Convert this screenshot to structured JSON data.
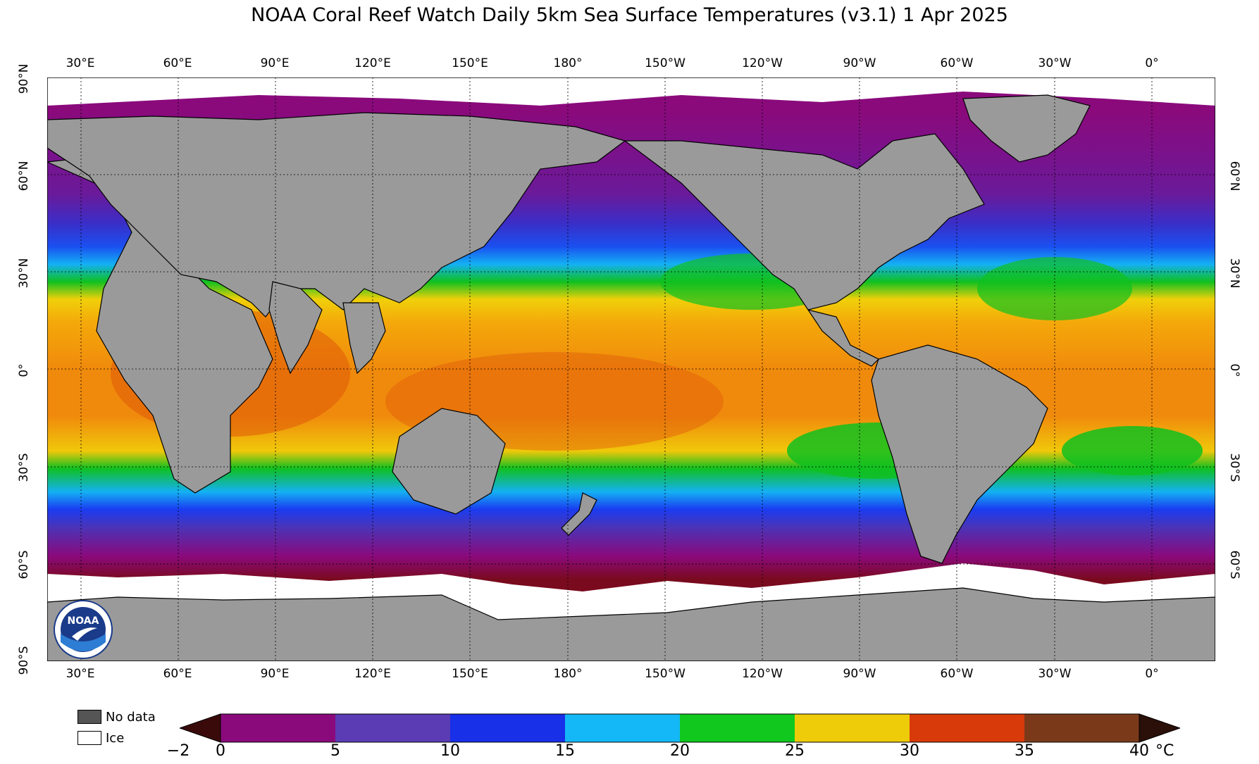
{
  "title": "NOAA Coral Reef Watch Daily 5km Sea Surface Temperatures  (v3.1)    1 Apr 2025",
  "lon_labels": [
    "30°E",
    "60°E",
    "90°E",
    "120°E",
    "150°E",
    "180°",
    "150°W",
    "120°W",
    "90°W",
    "60°W",
    "30°W",
    "0°"
  ],
  "lat_labels_left": [
    "90°N",
    "60°N",
    "30°N",
    "0°",
    "30°S",
    "60°S",
    "90°S"
  ],
  "lat_labels_right": [
    "60°N",
    "30°N",
    "0°",
    "30°S",
    "60°S"
  ],
  "legend": {
    "no_data": "No data",
    "ice": "Ice"
  },
  "colorbar": {
    "ticks": [
      "−2",
      "0",
      "5",
      "10",
      "15",
      "20",
      "25",
      "30",
      "35",
      "40"
    ],
    "unit": "°C",
    "bins": [
      {
        "from": -2,
        "to": 0,
        "color": "#7a0a1e"
      },
      {
        "from": 0,
        "to": 5,
        "color": "#8a0a7c"
      },
      {
        "from": 5,
        "to": 10,
        "color": "#5b3cb4"
      },
      {
        "from": 10,
        "to": 15,
        "color": "#1830e8"
      },
      {
        "from": 15,
        "to": 20,
        "color": "#14b8f6"
      },
      {
        "from": 20,
        "to": 25,
        "color": "#10c81e"
      },
      {
        "from": 25,
        "to": 30,
        "color": "#eecc0a"
      },
      {
        "from": 30,
        "to": 35,
        "color": "#d83a0a"
      },
      {
        "from": 35,
        "to": 40,
        "color": "#7a3a1a"
      }
    ]
  },
  "colors": {
    "land": "#9a9a9a",
    "ice": "#ffffff",
    "no_data": "#555555"
  },
  "logo_text": "NOAA"
}
